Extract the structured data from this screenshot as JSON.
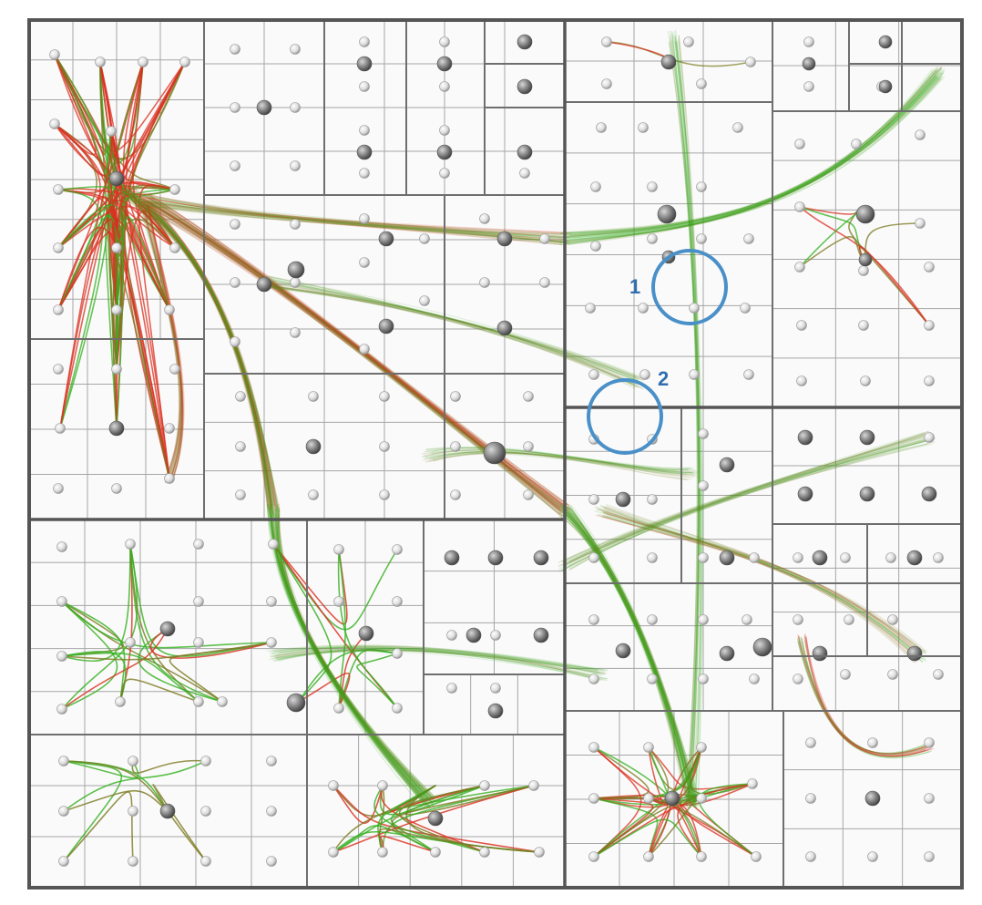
{
  "figure": {
    "type": "edge-bundled treemap graph",
    "background": "#ffffff",
    "frame_color": "#555555",
    "cell_fill": "#fbfafa",
    "grid_line_color": "#a6a6a6",
    "edge_colors": {
      "source_end": "#d93020",
      "target_end": "#34b020",
      "bundle_mid": "#7a7a20"
    },
    "node_colors": {
      "small": "#e8e8e8",
      "large": "#7a7a7a"
    },
    "markers": [
      {
        "label": "1",
        "color": "#4a90c8",
        "label_color": "#2f6fb0"
      },
      {
        "label": "2",
        "color": "#4a90c8",
        "label_color": "#2f6fb0"
      }
    ]
  }
}
